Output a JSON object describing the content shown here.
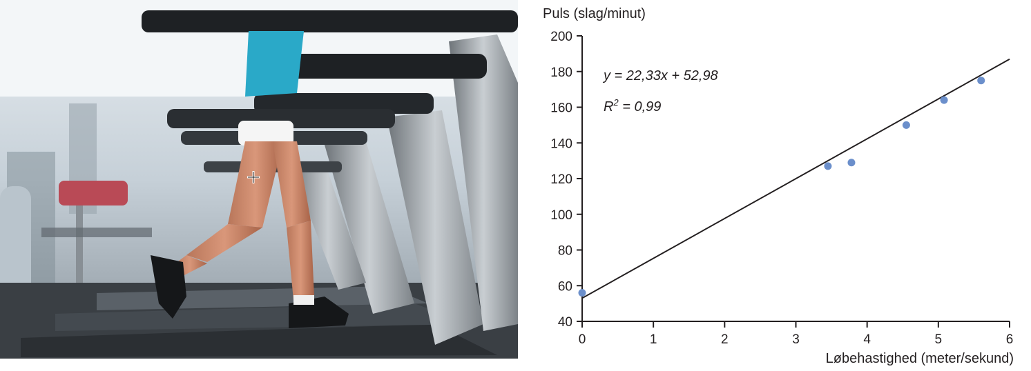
{
  "photo": {
    "description_icon": "treadmill-runner-photo",
    "cursor_icon": "move-crosshair-icon"
  },
  "chart_data": {
    "type": "scatter",
    "ylabel": "Puls (slag/minut)",
    "xlabel": "Løbehastighed (meter/sekund)",
    "xlim": [
      0,
      6
    ],
    "ylim": [
      40,
      200
    ],
    "xticks": [
      0,
      1,
      2,
      3,
      4,
      5,
      6
    ],
    "yticks": [
      40,
      60,
      80,
      100,
      120,
      140,
      160,
      180,
      200
    ],
    "points": [
      {
        "x": 0,
        "y": 56
      },
      {
        "x": 3.45,
        "y": 127
      },
      {
        "x": 3.78,
        "y": 129
      },
      {
        "x": 4.55,
        "y": 150
      },
      {
        "x": 5.08,
        "y": 164
      },
      {
        "x": 5.6,
        "y": 175
      }
    ],
    "trendline": {
      "slope": 22.33,
      "intercept": 52.98
    },
    "equation_main": "y = 22,33x + 52,98",
    "r2_prefix": "R",
    "r2_sup": "2",
    "r2_value": " = 0,99",
    "grid": false,
    "colors": {
      "points": "#6b8fcb",
      "line": "#231f20",
      "axis": "#231f20"
    }
  }
}
